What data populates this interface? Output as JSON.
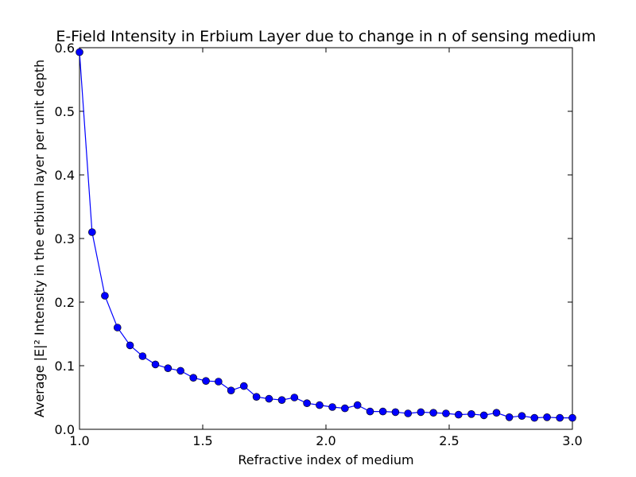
{
  "chart_data": {
    "type": "line",
    "title": "E-Field Intensity in Erbium Layer due to change in n of sensing medium",
    "xlabel": "Refractive index of medium",
    "ylabel": "Average |E|² Intensity in the erbium layer per unit depth",
    "xlim": [
      1.0,
      3.0
    ],
    "ylim": [
      0.0,
      0.6
    ],
    "xticks": [
      "1.0",
      "1.5",
      "2.0",
      "2.5",
      "3.0"
    ],
    "yticks": [
      "0.0",
      "0.1",
      "0.2",
      "0.3",
      "0.4",
      "0.5",
      "0.6"
    ],
    "grid": false,
    "series": [
      {
        "color": "#0000ff",
        "marker": "circle",
        "x": [
          1.0,
          1.051,
          1.103,
          1.154,
          1.205,
          1.256,
          1.308,
          1.359,
          1.41,
          1.462,
          1.513,
          1.564,
          1.615,
          1.667,
          1.718,
          1.769,
          1.821,
          1.872,
          1.923,
          1.974,
          2.026,
          2.077,
          2.128,
          2.179,
          2.231,
          2.282,
          2.333,
          2.385,
          2.436,
          2.487,
          2.538,
          2.59,
          2.641,
          2.692,
          2.744,
          2.795,
          2.846,
          2.897,
          2.949,
          3.0
        ],
        "y": [
          0.593,
          0.31,
          0.21,
          0.16,
          0.132,
          0.115,
          0.102,
          0.096,
          0.092,
          0.081,
          0.076,
          0.075,
          0.061,
          0.068,
          0.051,
          0.048,
          0.046,
          0.05,
          0.041,
          0.038,
          0.035,
          0.033,
          0.038,
          0.028,
          0.028,
          0.027,
          0.025,
          0.027,
          0.026,
          0.025,
          0.023,
          0.024,
          0.022,
          0.026,
          0.019,
          0.021,
          0.018,
          0.019,
          0.018,
          0.018
        ]
      }
    ]
  }
}
